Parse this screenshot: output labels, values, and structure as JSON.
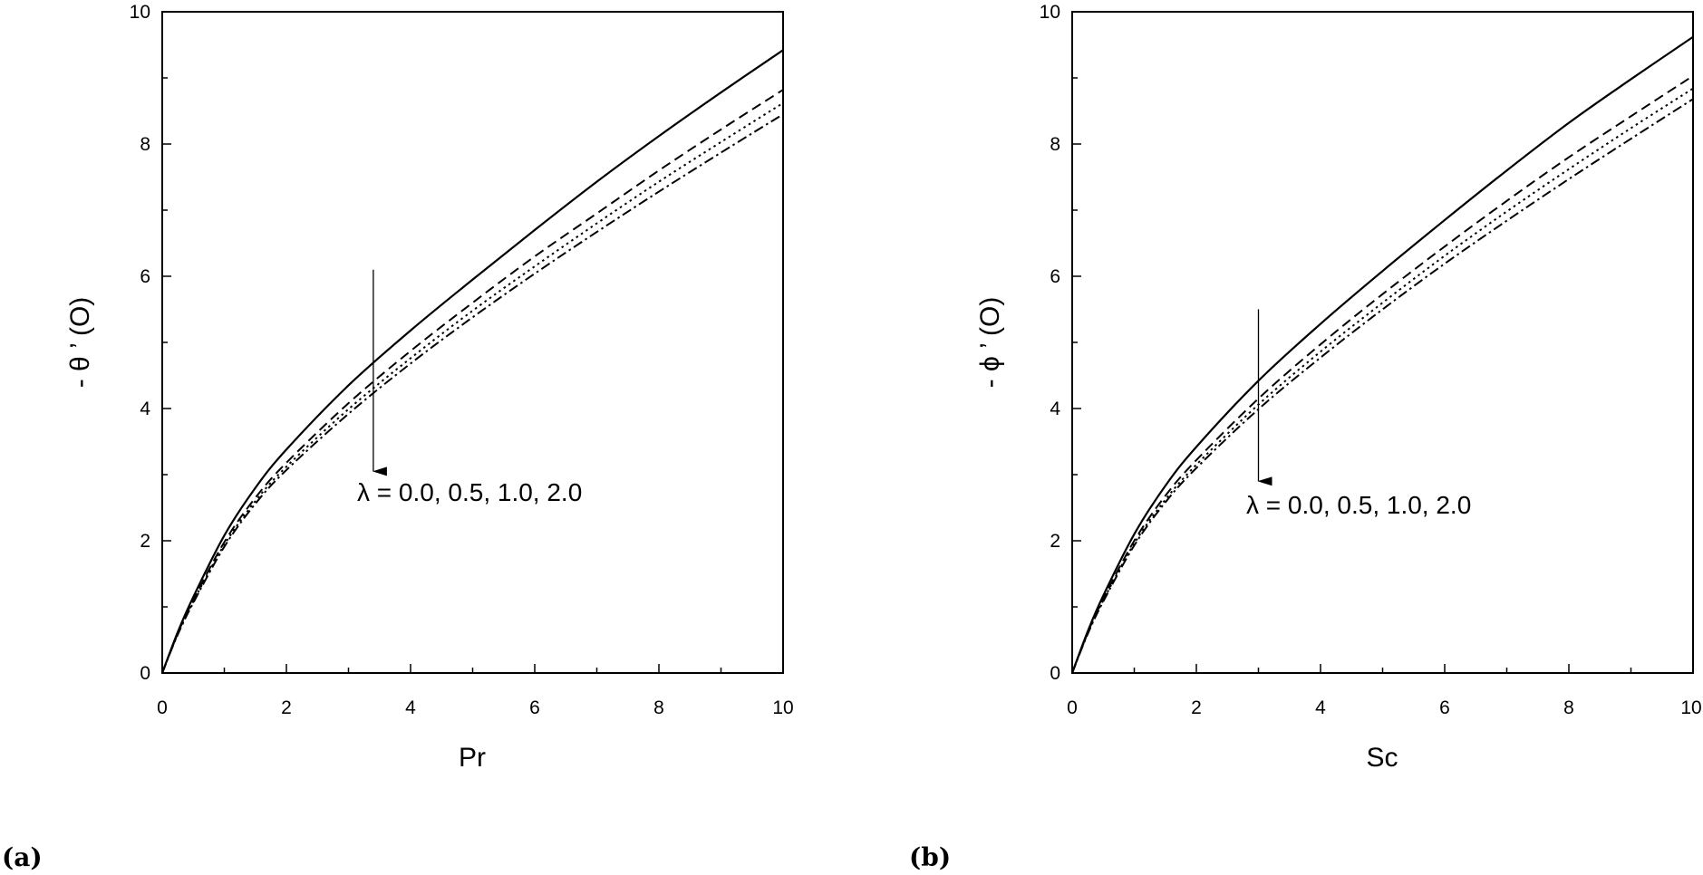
{
  "chart_data": [
    {
      "type": "line",
      "panel_label": "(a)",
      "xlabel": "Pr",
      "ylabel": "- θ ’ (O)",
      "xlim": [
        0,
        10
      ],
      "ylim": [
        0,
        10
      ],
      "xticks": [
        0,
        2,
        4,
        6,
        8,
        10
      ],
      "yticks": [
        0,
        2,
        4,
        6,
        8,
        10
      ],
      "grid": false,
      "annotation": {
        "text": "λ = 0.0, 0.5, 1.0, 2.0",
        "arrow_x": 3.4,
        "arrow_from_y": 6.1,
        "arrow_to_y": 3.05
      },
      "x": [
        0,
        0.25,
        0.5,
        1,
        1.5,
        2,
        3,
        4,
        5,
        6,
        7,
        8,
        9,
        10
      ],
      "series": [
        {
          "line_style": "solid",
          "values": [
            0,
            0.62,
            1.15,
            2.08,
            2.8,
            3.38,
            4.35,
            5.18,
            5.95,
            6.7,
            7.43,
            8.12,
            8.78,
            9.42
          ]
        },
        {
          "line_style": "dashed",
          "values": [
            0,
            0.6,
            1.1,
            1.98,
            2.65,
            3.18,
            4.08,
            4.87,
            5.6,
            6.3,
            6.95,
            7.6,
            8.22,
            8.82
          ]
        },
        {
          "line_style": "dotted",
          "values": [
            0,
            0.59,
            1.08,
            1.94,
            2.6,
            3.12,
            3.99,
            4.76,
            5.48,
            6.15,
            6.8,
            7.43,
            8.03,
            8.62
          ]
        },
        {
          "line_style": "dash-dot",
          "values": [
            0,
            0.58,
            1.06,
            1.91,
            2.56,
            3.07,
            3.92,
            4.68,
            5.38,
            6.04,
            6.67,
            7.28,
            7.87,
            8.45
          ]
        }
      ]
    },
    {
      "type": "line",
      "panel_label": "(b)",
      "xlabel": "Sc",
      "ylabel": "- ϕ ’ (O)",
      "xlim": [
        0,
        10
      ],
      "ylim": [
        0,
        10
      ],
      "xticks": [
        0,
        2,
        4,
        6,
        8,
        10
      ],
      "yticks": [
        0,
        2,
        4,
        6,
        8,
        10
      ],
      "grid": false,
      "annotation": {
        "text": "λ = 0.0, 0.5, 1.0, 2.0",
        "arrow_x": 3.0,
        "arrow_from_y": 5.5,
        "arrow_to_y": 2.9
      },
      "x": [
        0,
        0.25,
        0.5,
        1,
        1.5,
        2,
        3,
        4,
        5,
        6,
        7,
        8,
        9,
        10
      ],
      "series": [
        {
          "line_style": "solid",
          "values": [
            0,
            0.63,
            1.17,
            2.1,
            2.83,
            3.42,
            4.42,
            5.28,
            6.08,
            6.85,
            7.6,
            8.32,
            8.98,
            9.62
          ]
        },
        {
          "line_style": "dashed",
          "values": [
            0,
            0.61,
            1.12,
            2.0,
            2.68,
            3.22,
            4.15,
            4.97,
            5.73,
            6.45,
            7.14,
            7.8,
            8.42,
            9.03
          ]
        },
        {
          "line_style": "dotted",
          "values": [
            0,
            0.6,
            1.1,
            1.96,
            2.62,
            3.15,
            4.06,
            4.86,
            5.6,
            6.31,
            6.98,
            7.62,
            8.24,
            8.84
          ]
        },
        {
          "line_style": "dash-dot",
          "values": [
            0,
            0.59,
            1.08,
            1.93,
            2.58,
            3.1,
            3.99,
            4.77,
            5.5,
            6.19,
            6.84,
            7.47,
            8.08,
            8.68
          ]
        }
      ]
    }
  ]
}
